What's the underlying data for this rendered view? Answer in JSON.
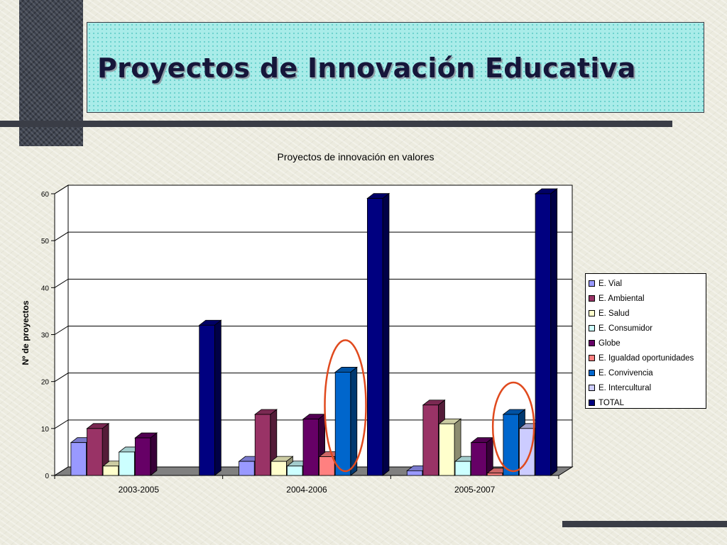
{
  "slide": {
    "title": "Proyectos de Innovación Educativa"
  },
  "colors": {
    "E. Vial": "#9999ff",
    "E. Ambiental": "#993366",
    "E. Salud": "#ffffcc",
    "E. Consumidor": "#ccffff",
    "Globe": "#660066",
    "E. Igualdad oportunidades": "#ff8080",
    "E. Convivencia": "#0066cc",
    "E. Intercultural": "#ccccff",
    "TOTAL": "#000080",
    "highlight_ellipse": "#e04a1e"
  },
  "chart_data": {
    "type": "bar",
    "title": "Proyectos de innovación en valores",
    "xlabel": "",
    "ylabel": "Nº de proyectos",
    "ylim": [
      0,
      60
    ],
    "yticks": [
      0,
      10,
      20,
      30,
      40,
      50,
      60
    ],
    "grid": true,
    "legend_position": "right",
    "categories": [
      "2003-2005",
      "2004-2006",
      "2005-2007"
    ],
    "series": [
      {
        "name": "E. Vial",
        "values": [
          7,
          3,
          1
        ]
      },
      {
        "name": "E. Ambiental",
        "values": [
          10,
          13,
          15
        ]
      },
      {
        "name": "E. Salud",
        "values": [
          2,
          3,
          11
        ]
      },
      {
        "name": "E. Consumidor",
        "values": [
          5,
          2,
          3
        ]
      },
      {
        "name": "Globe",
        "values": [
          8,
          12,
          7
        ]
      },
      {
        "name": "E. Igualdad oportunidades",
        "values": [
          0,
          4,
          0.5
        ]
      },
      {
        "name": "E. Convivencia",
        "values": [
          0,
          22,
          13
        ]
      },
      {
        "name": "E. Intercultural",
        "values": [
          0,
          0,
          10
        ]
      },
      {
        "name": "TOTAL",
        "values": [
          32,
          59,
          60
        ]
      }
    ],
    "highlights": [
      {
        "series": "E. Convivencia",
        "category": "2004-2006"
      },
      {
        "series": "E. Convivencia",
        "category": "2005-2007"
      }
    ]
  }
}
